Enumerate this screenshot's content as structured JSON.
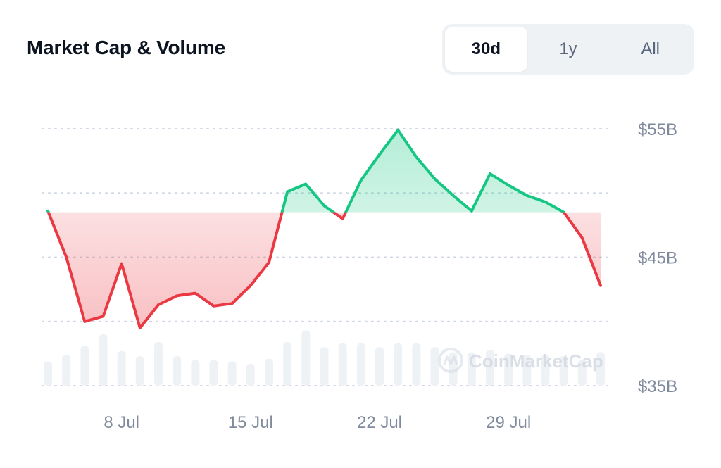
{
  "header": {
    "title": "Market Cap & Volume"
  },
  "range_tabs": [
    {
      "label": "30d",
      "active": true
    },
    {
      "label": "1y",
      "active": false
    },
    {
      "label": "All",
      "active": false
    }
  ],
  "watermark": "CoinMarketCap",
  "colors": {
    "up": "#16c784",
    "down": "#ea3943",
    "volume": "#eff2f5",
    "grid": "#cfd6e4",
    "tick": "#808a9d"
  },
  "chart_data": {
    "type": "line",
    "title": "Market Cap & Volume",
    "x_ticks": [
      {
        "label": "8 Jul",
        "x": 6
      },
      {
        "label": "15 Jul",
        "x": 13
      },
      {
        "label": "22 Jul",
        "x": 20
      },
      {
        "label": "29 Jul",
        "x": 27
      }
    ],
    "y_ticks": [
      {
        "label": "$55B",
        "value": 55
      },
      {
        "label": "$45B",
        "value": 45
      },
      {
        "label": "$35B",
        "value": 35
      }
    ],
    "ylim": [
      35,
      55
    ],
    "baseline": 48.5,
    "grid": true,
    "series": [
      {
        "values": [
          [
            2,
            48.6
          ],
          [
            3,
            45.0
          ],
          [
            4,
            40.0
          ],
          [
            5,
            40.4
          ],
          [
            6,
            44.5
          ],
          [
            7,
            39.5
          ],
          [
            8,
            41.3
          ],
          [
            9,
            42.0
          ],
          [
            10,
            42.2
          ],
          [
            11,
            41.2
          ],
          [
            12,
            41.4
          ],
          [
            13,
            42.8
          ],
          [
            14,
            44.6
          ],
          [
            15,
            50.1
          ],
          [
            16,
            50.7
          ],
          [
            17,
            49.0
          ],
          [
            18,
            48.0
          ],
          [
            19,
            51.0
          ],
          [
            20,
            53.0
          ],
          [
            21,
            54.9
          ],
          [
            22,
            52.8
          ],
          [
            23,
            51.1
          ],
          [
            24,
            49.8
          ],
          [
            25,
            48.6
          ],
          [
            26,
            51.5
          ],
          [
            27,
            50.6
          ],
          [
            28,
            49.8
          ],
          [
            29,
            49.3
          ],
          [
            30,
            48.5
          ],
          [
            31,
            46.5
          ],
          [
            32,
            42.8
          ]
        ]
      }
    ],
    "volume": [
      [
        2,
        36.9
      ],
      [
        3,
        37.4
      ],
      [
        4,
        38.1
      ],
      [
        5,
        39.0
      ],
      [
        6,
        37.7
      ],
      [
        7,
        37.3
      ],
      [
        8,
        38.4
      ],
      [
        9,
        37.3
      ],
      [
        10,
        37.0
      ],
      [
        11,
        37.0
      ],
      [
        12,
        36.9
      ],
      [
        13,
        36.7
      ],
      [
        14,
        37.1
      ],
      [
        15,
        38.4
      ],
      [
        16,
        39.3
      ],
      [
        17,
        38.0
      ],
      [
        18,
        38.3
      ],
      [
        19,
        38.3
      ],
      [
        20,
        38.0
      ],
      [
        21,
        38.3
      ],
      [
        22,
        38.3
      ],
      [
        23,
        38.0
      ],
      [
        24,
        37.6
      ],
      [
        25,
        37.6
      ],
      [
        26,
        37.8
      ],
      [
        27,
        37.5
      ],
      [
        28,
        37.4
      ],
      [
        29,
        37.4
      ],
      [
        30,
        37.3
      ],
      [
        31,
        37.0
      ],
      [
        32,
        37.6
      ]
    ]
  }
}
